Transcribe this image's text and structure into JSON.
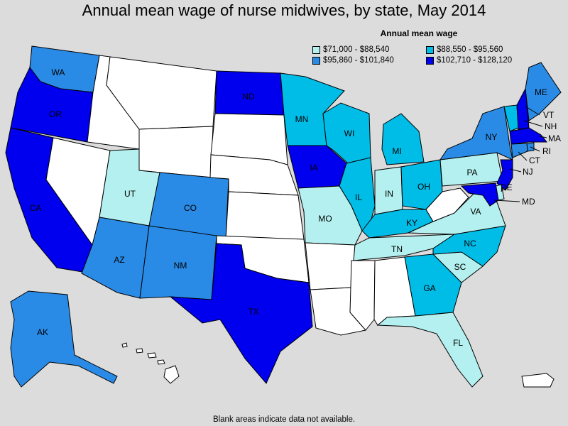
{
  "title": "Annual mean wage of nurse midwives, by state, May 2014",
  "legend": {
    "title": "Annual mean wage",
    "bins": [
      {
        "label": "$71,000 - $88,540",
        "color": "#b3f0ef"
      },
      {
        "label": "$88,550 - $95,560",
        "color": "#00bde8"
      },
      {
        "label": "$95,860 - $101,840",
        "color": "#2a8be6"
      },
      {
        "label": "$102,710 - $128,120",
        "color": "#0000ee"
      }
    ]
  },
  "footnote": "Blank areas indicate data not available.",
  "nodata_color": "#ffffff",
  "states": [
    {
      "abbr": "WA",
      "bin": 2
    },
    {
      "abbr": "OR",
      "bin": 3
    },
    {
      "abbr": "CA",
      "bin": 3
    },
    {
      "abbr": "NV",
      "bin": -1
    },
    {
      "abbr": "ID",
      "bin": -1
    },
    {
      "abbr": "MT",
      "bin": -1
    },
    {
      "abbr": "WY",
      "bin": -1
    },
    {
      "abbr": "UT",
      "bin": 0
    },
    {
      "abbr": "CO",
      "bin": 2
    },
    {
      "abbr": "AZ",
      "bin": 2
    },
    {
      "abbr": "NM",
      "bin": 2
    },
    {
      "abbr": "ND",
      "bin": 3
    },
    {
      "abbr": "SD",
      "bin": -1
    },
    {
      "abbr": "NE",
      "bin": -1
    },
    {
      "abbr": "KS",
      "bin": -1
    },
    {
      "abbr": "OK",
      "bin": -1
    },
    {
      "abbr": "TX",
      "bin": 3
    },
    {
      "abbr": "MN",
      "bin": 1
    },
    {
      "abbr": "IA",
      "bin": 3
    },
    {
      "abbr": "MO",
      "bin": 0
    },
    {
      "abbr": "AR",
      "bin": -1
    },
    {
      "abbr": "LA",
      "bin": -1
    },
    {
      "abbr": "WI",
      "bin": 1
    },
    {
      "abbr": "IL",
      "bin": 1
    },
    {
      "abbr": "MI",
      "bin": 1
    },
    {
      "abbr": "IN",
      "bin": 0
    },
    {
      "abbr": "OH",
      "bin": 1
    },
    {
      "abbr": "KY",
      "bin": 1
    },
    {
      "abbr": "TN",
      "bin": 0
    },
    {
      "abbr": "MS",
      "bin": -1
    },
    {
      "abbr": "AL",
      "bin": -1
    },
    {
      "abbr": "GA",
      "bin": 1
    },
    {
      "abbr": "FL",
      "bin": 0
    },
    {
      "abbr": "SC",
      "bin": 0
    },
    {
      "abbr": "NC",
      "bin": 1
    },
    {
      "abbr": "VA",
      "bin": 0
    },
    {
      "abbr": "WV",
      "bin": -1
    },
    {
      "abbr": "PA",
      "bin": 0
    },
    {
      "abbr": "NY",
      "bin": 2
    },
    {
      "abbr": "VT",
      "bin": 1
    },
    {
      "abbr": "NH",
      "bin": 3
    },
    {
      "abbr": "ME",
      "bin": 2
    },
    {
      "abbr": "MA",
      "bin": 3
    },
    {
      "abbr": "RI",
      "bin": 2
    },
    {
      "abbr": "CT",
      "bin": 2
    },
    {
      "abbr": "NJ",
      "bin": 3
    },
    {
      "abbr": "DE",
      "bin": 0
    },
    {
      "abbr": "MD",
      "bin": 3
    },
    {
      "abbr": "AK",
      "bin": 2
    },
    {
      "abbr": "HI",
      "bin": -1
    },
    {
      "abbr": "PR",
      "bin": -1
    }
  ]
}
